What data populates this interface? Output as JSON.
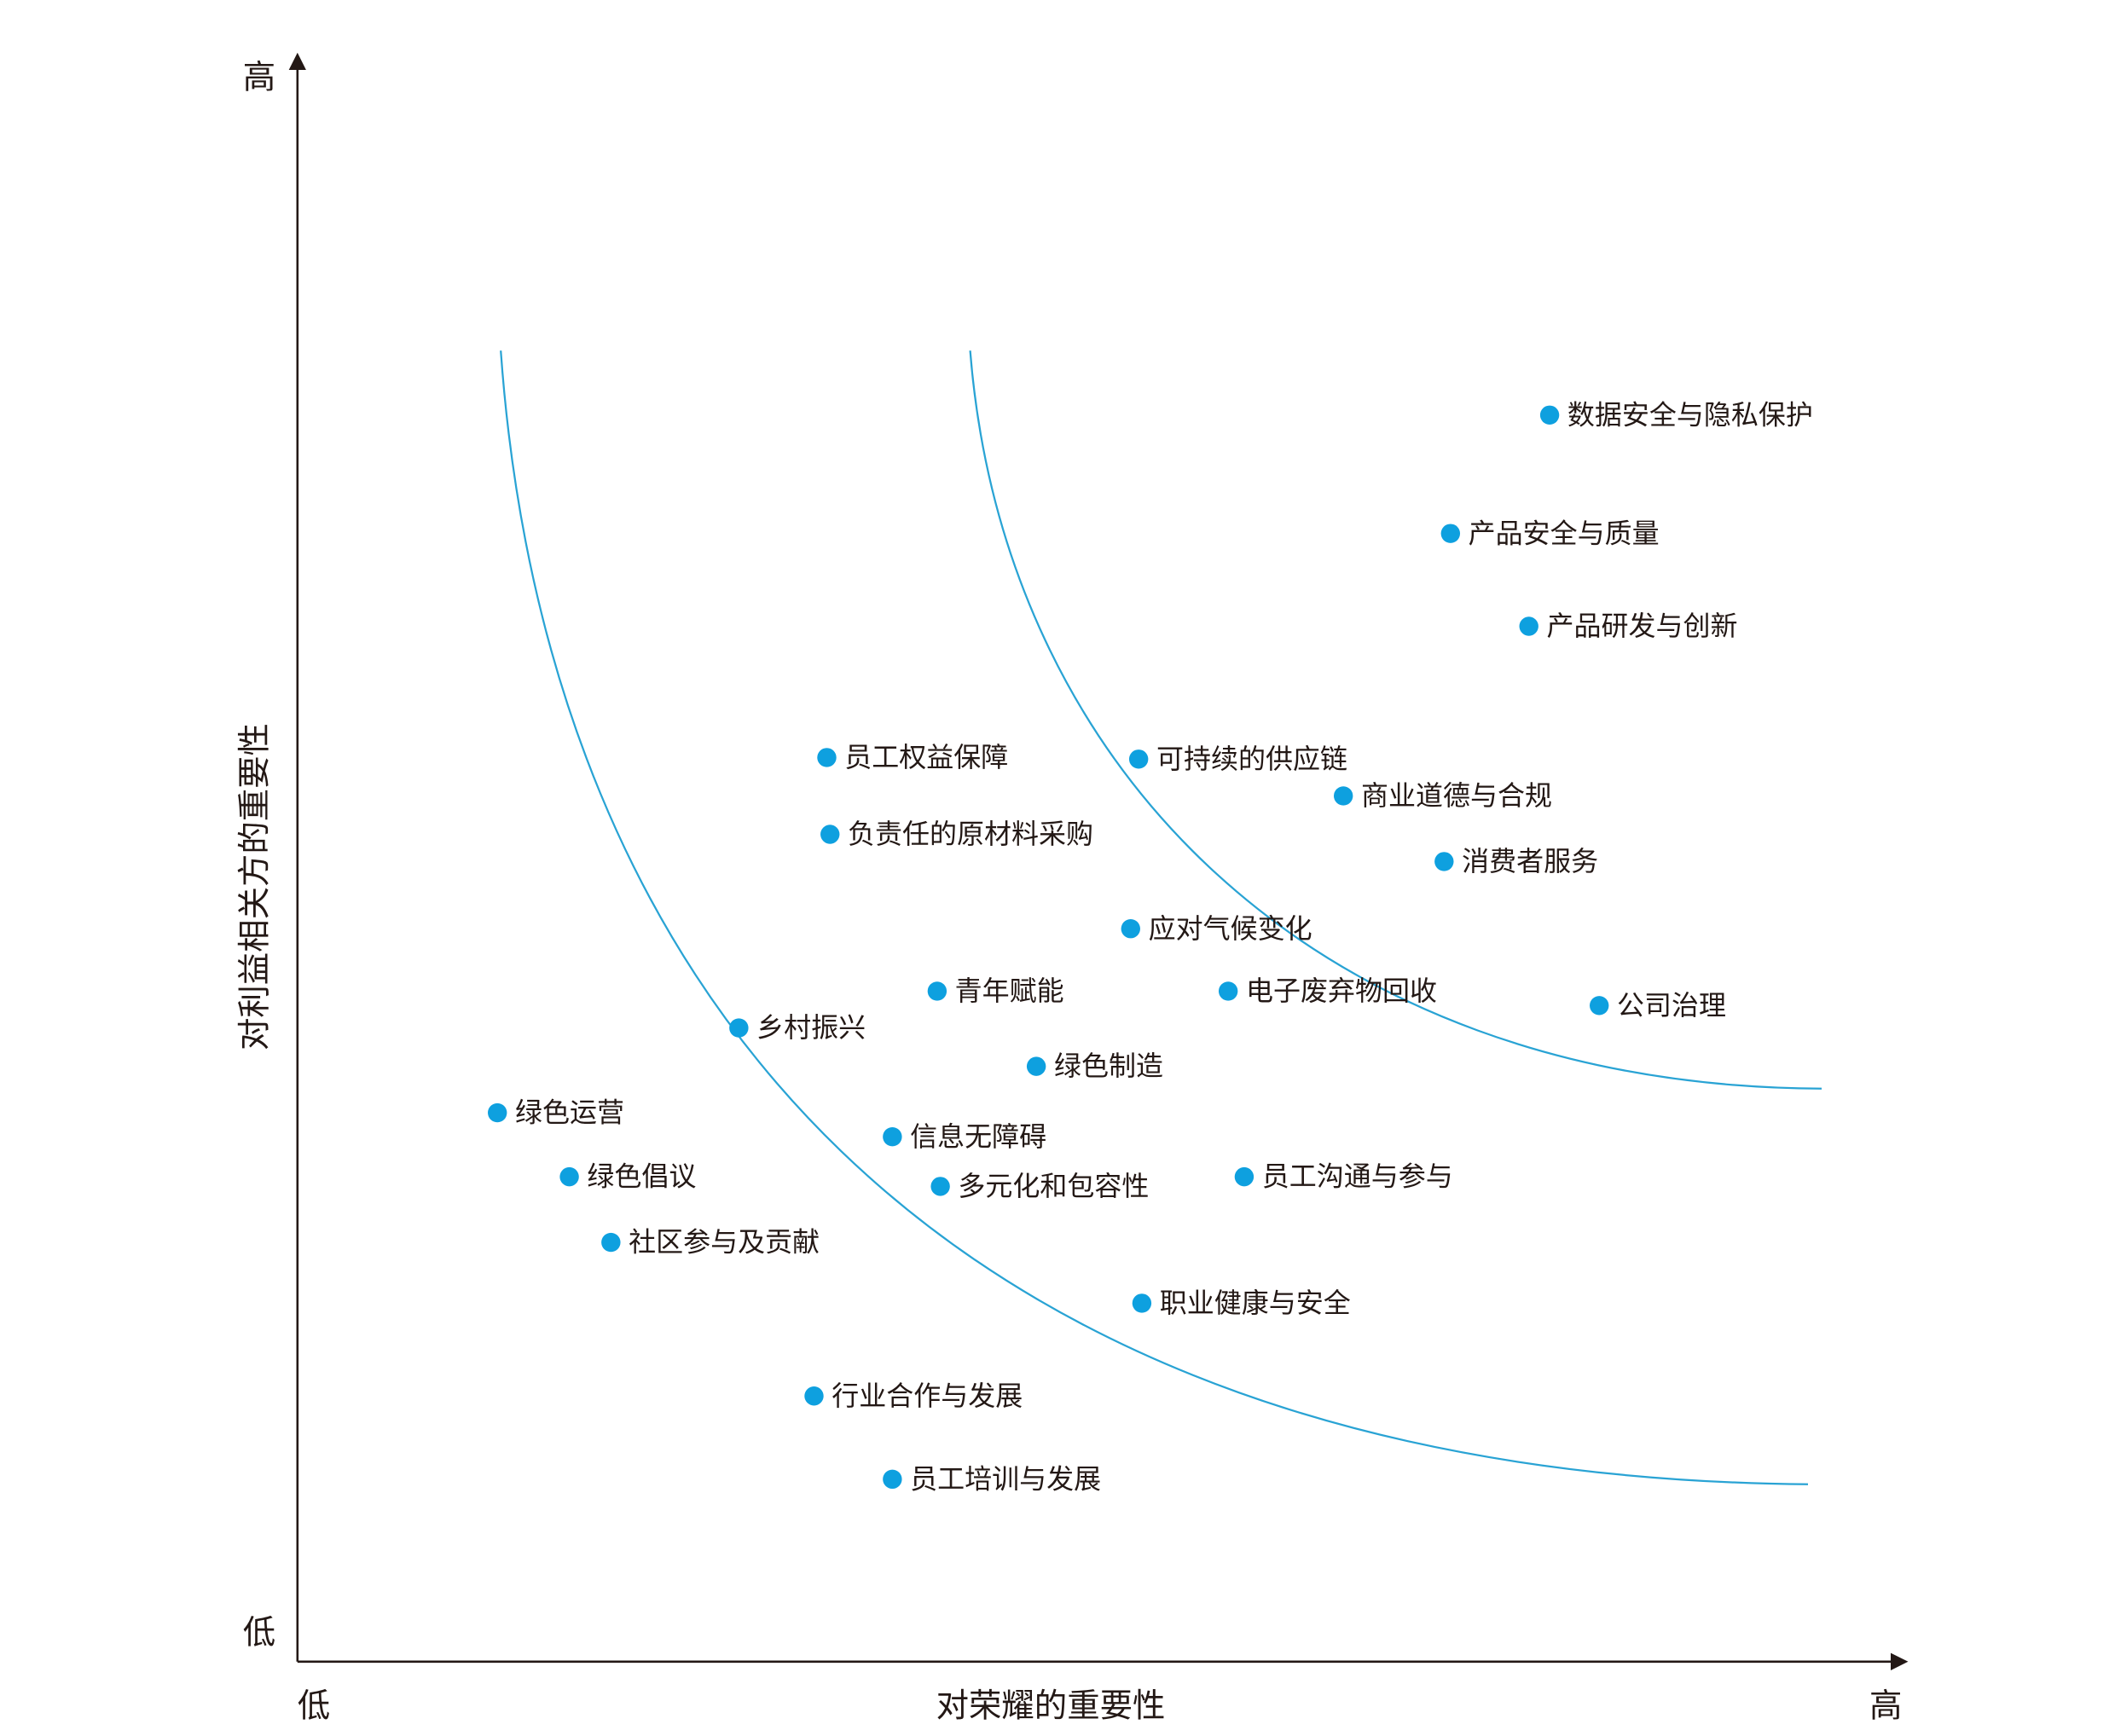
{
  "chart_data": {
    "type": "scatter",
    "x_label": "对荣耀的重要性",
    "y_label": "对利益相关方的重要性",
    "x_end_labels": [
      "低",
      "高"
    ],
    "y_end_labels": [
      "低",
      "高"
    ],
    "xlim": [
      0,
      100
    ],
    "ylim": [
      0,
      100
    ],
    "color": "#0ea0df",
    "labels": [
      "数据安全与隐私保护",
      "产品安全与质量",
      "产品研发与创新",
      "员工权益保障",
      "可持续的供应链",
      "商业道德与合规",
      "负责任的原材料采购",
      "消费者服务",
      "应对气候变化",
      "青年赋能",
      "电子废弃物回收",
      "公司治理",
      "乡村振兴",
      "绿色制造",
      "绿色运营",
      "信息无障碍",
      "绿色倡议",
      "多元化和包容性",
      "员工沟通与参与",
      "社区参与及贡献",
      "职业健康与安全",
      "行业合作与发展",
      "员工培训与发展"
    ],
    "x": [
      78.3,
      72.1,
      77.0,
      33.1,
      52.6,
      65.4,
      33.3,
      71.7,
      52.1,
      40.0,
      58.2,
      81.4,
      27.6,
      46.2,
      12.5,
      37.2,
      17.0,
      40.2,
      59.2,
      19.6,
      52.8,
      32.3,
      37.2
    ],
    "values": [
      77.9,
      70.5,
      64.7,
      56.5,
      56.4,
      54.1,
      51.7,
      50.0,
      45.8,
      41.9,
      41.9,
      41.0,
      39.6,
      37.2,
      34.3,
      32.8,
      30.3,
      29.7,
      30.3,
      26.2,
      22.4,
      16.6,
      11.4
    ]
  }
}
